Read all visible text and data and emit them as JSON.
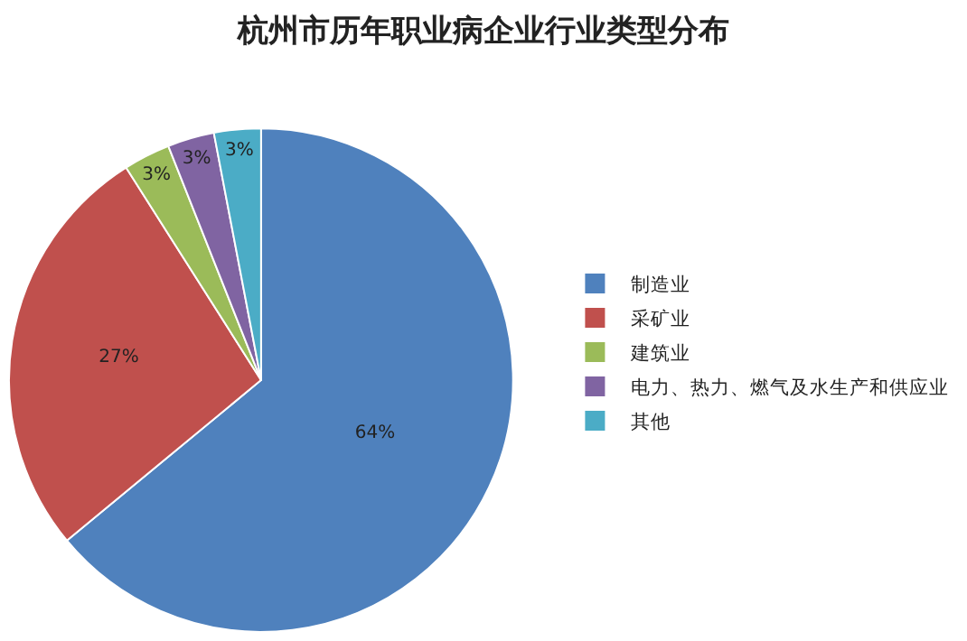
{
  "chart_data": {
    "type": "pie",
    "title": "杭州市历年职业病企业行业类型分布",
    "categories": [
      "制造业",
      "采矿业",
      "建筑业",
      "电力、热力、燃气及水生产和供应业",
      "其他"
    ],
    "values": [
      64,
      27,
      3,
      3,
      3
    ],
    "value_labels": [
      "64%",
      "27%",
      "3%",
      "3%",
      "3%"
    ],
    "colors": [
      "#4f81bd",
      "#c0504d",
      "#9bbb59",
      "#8064a2",
      "#4bacc6"
    ],
    "legend": "right"
  }
}
